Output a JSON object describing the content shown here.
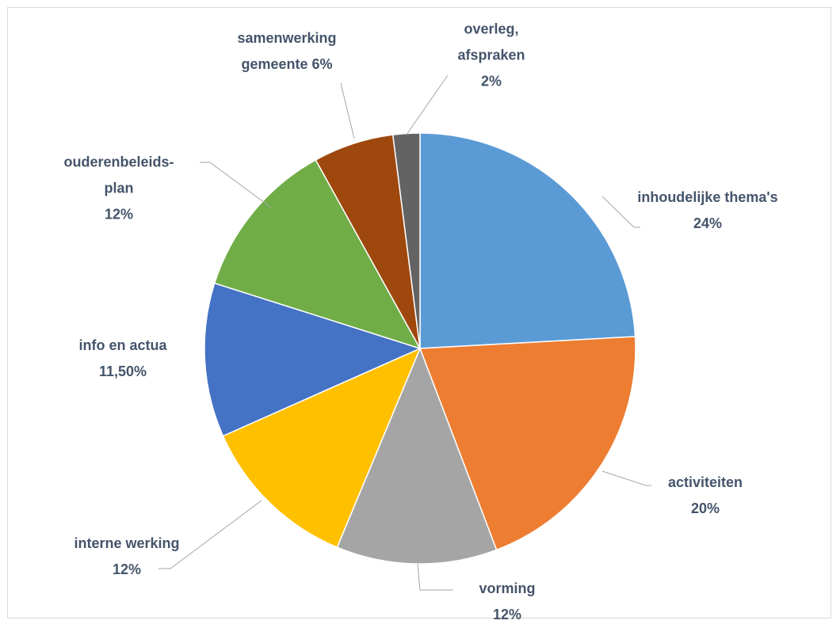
{
  "chart_data": {
    "type": "pie",
    "categories": [
      "inhoudelijke thema's",
      "activiteiten",
      "vorming",
      "interne werking",
      "info en actua",
      "ouderenbeleids-plan",
      "samenwerking gemeente",
      "overleg, afspraken"
    ],
    "values": [
      24,
      20,
      12,
      12,
      11.5,
      12,
      6,
      2
    ],
    "value_labels": [
      "24%",
      "20%",
      "12%",
      "12%",
      "11,50%",
      "12%",
      "6%",
      "2%"
    ],
    "colors": [
      "#5b9bd5",
      "#ed7d31",
      "#a5a5a5",
      "#ffc000",
      "#4472c4",
      "#70ad47",
      "#9e480e",
      "#636363"
    ]
  }
}
